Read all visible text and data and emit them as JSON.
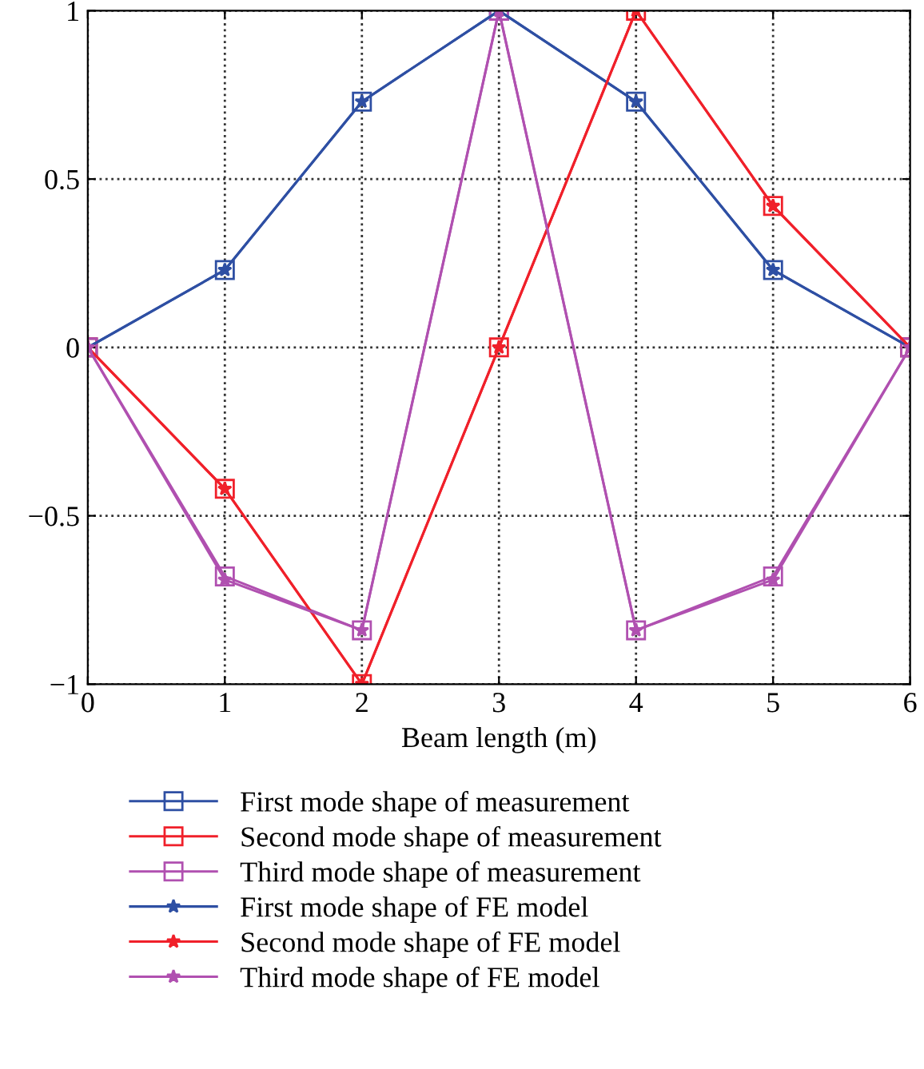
{
  "chart_data": {
    "type": "line",
    "xlabel": "Beam length (m)",
    "x": [
      0,
      1,
      2,
      3,
      4,
      5,
      6
    ],
    "series": [
      {
        "name": "First mode shape of measurement",
        "color": "#2e4fa3",
        "marker": "square",
        "values": [
          0,
          0.23,
          0.73,
          1,
          0.73,
          0.23,
          0
        ]
      },
      {
        "name": "Second mode shape of measurement",
        "color": "#f0202a",
        "marker": "square",
        "values": [
          0,
          -0.42,
          -1,
          0,
          1,
          0.42,
          0
        ]
      },
      {
        "name": "Third mode shape of measurement",
        "color": "#b050b0",
        "marker": "square",
        "values": [
          0,
          -0.68,
          -0.84,
          1,
          -0.84,
          -0.68,
          0
        ]
      },
      {
        "name": "First mode shape of FE model",
        "color": "#2e4fa3",
        "marker": "star",
        "values": [
          0,
          0.23,
          0.73,
          1,
          0.73,
          0.23,
          0
        ]
      },
      {
        "name": "Second mode shape of FE model",
        "color": "#f0202a",
        "marker": "star",
        "values": [
          0,
          -0.42,
          -1,
          0,
          1,
          0.42,
          0
        ]
      },
      {
        "name": "Third mode shape of FE model",
        "color": "#b050b0",
        "marker": "star",
        "values": [
          0,
          -0.69,
          -0.84,
          1,
          -0.84,
          -0.69,
          0
        ]
      }
    ],
    "xlim": [
      0,
      6
    ],
    "xticks": [
      0,
      1,
      2,
      3,
      4,
      5,
      6
    ],
    "ylim": [
      -1,
      1
    ],
    "yticks": [
      -1,
      -0.5,
      0,
      0.5,
      1
    ],
    "grid": true,
    "line_style": "solid",
    "legend": "bottom"
  }
}
